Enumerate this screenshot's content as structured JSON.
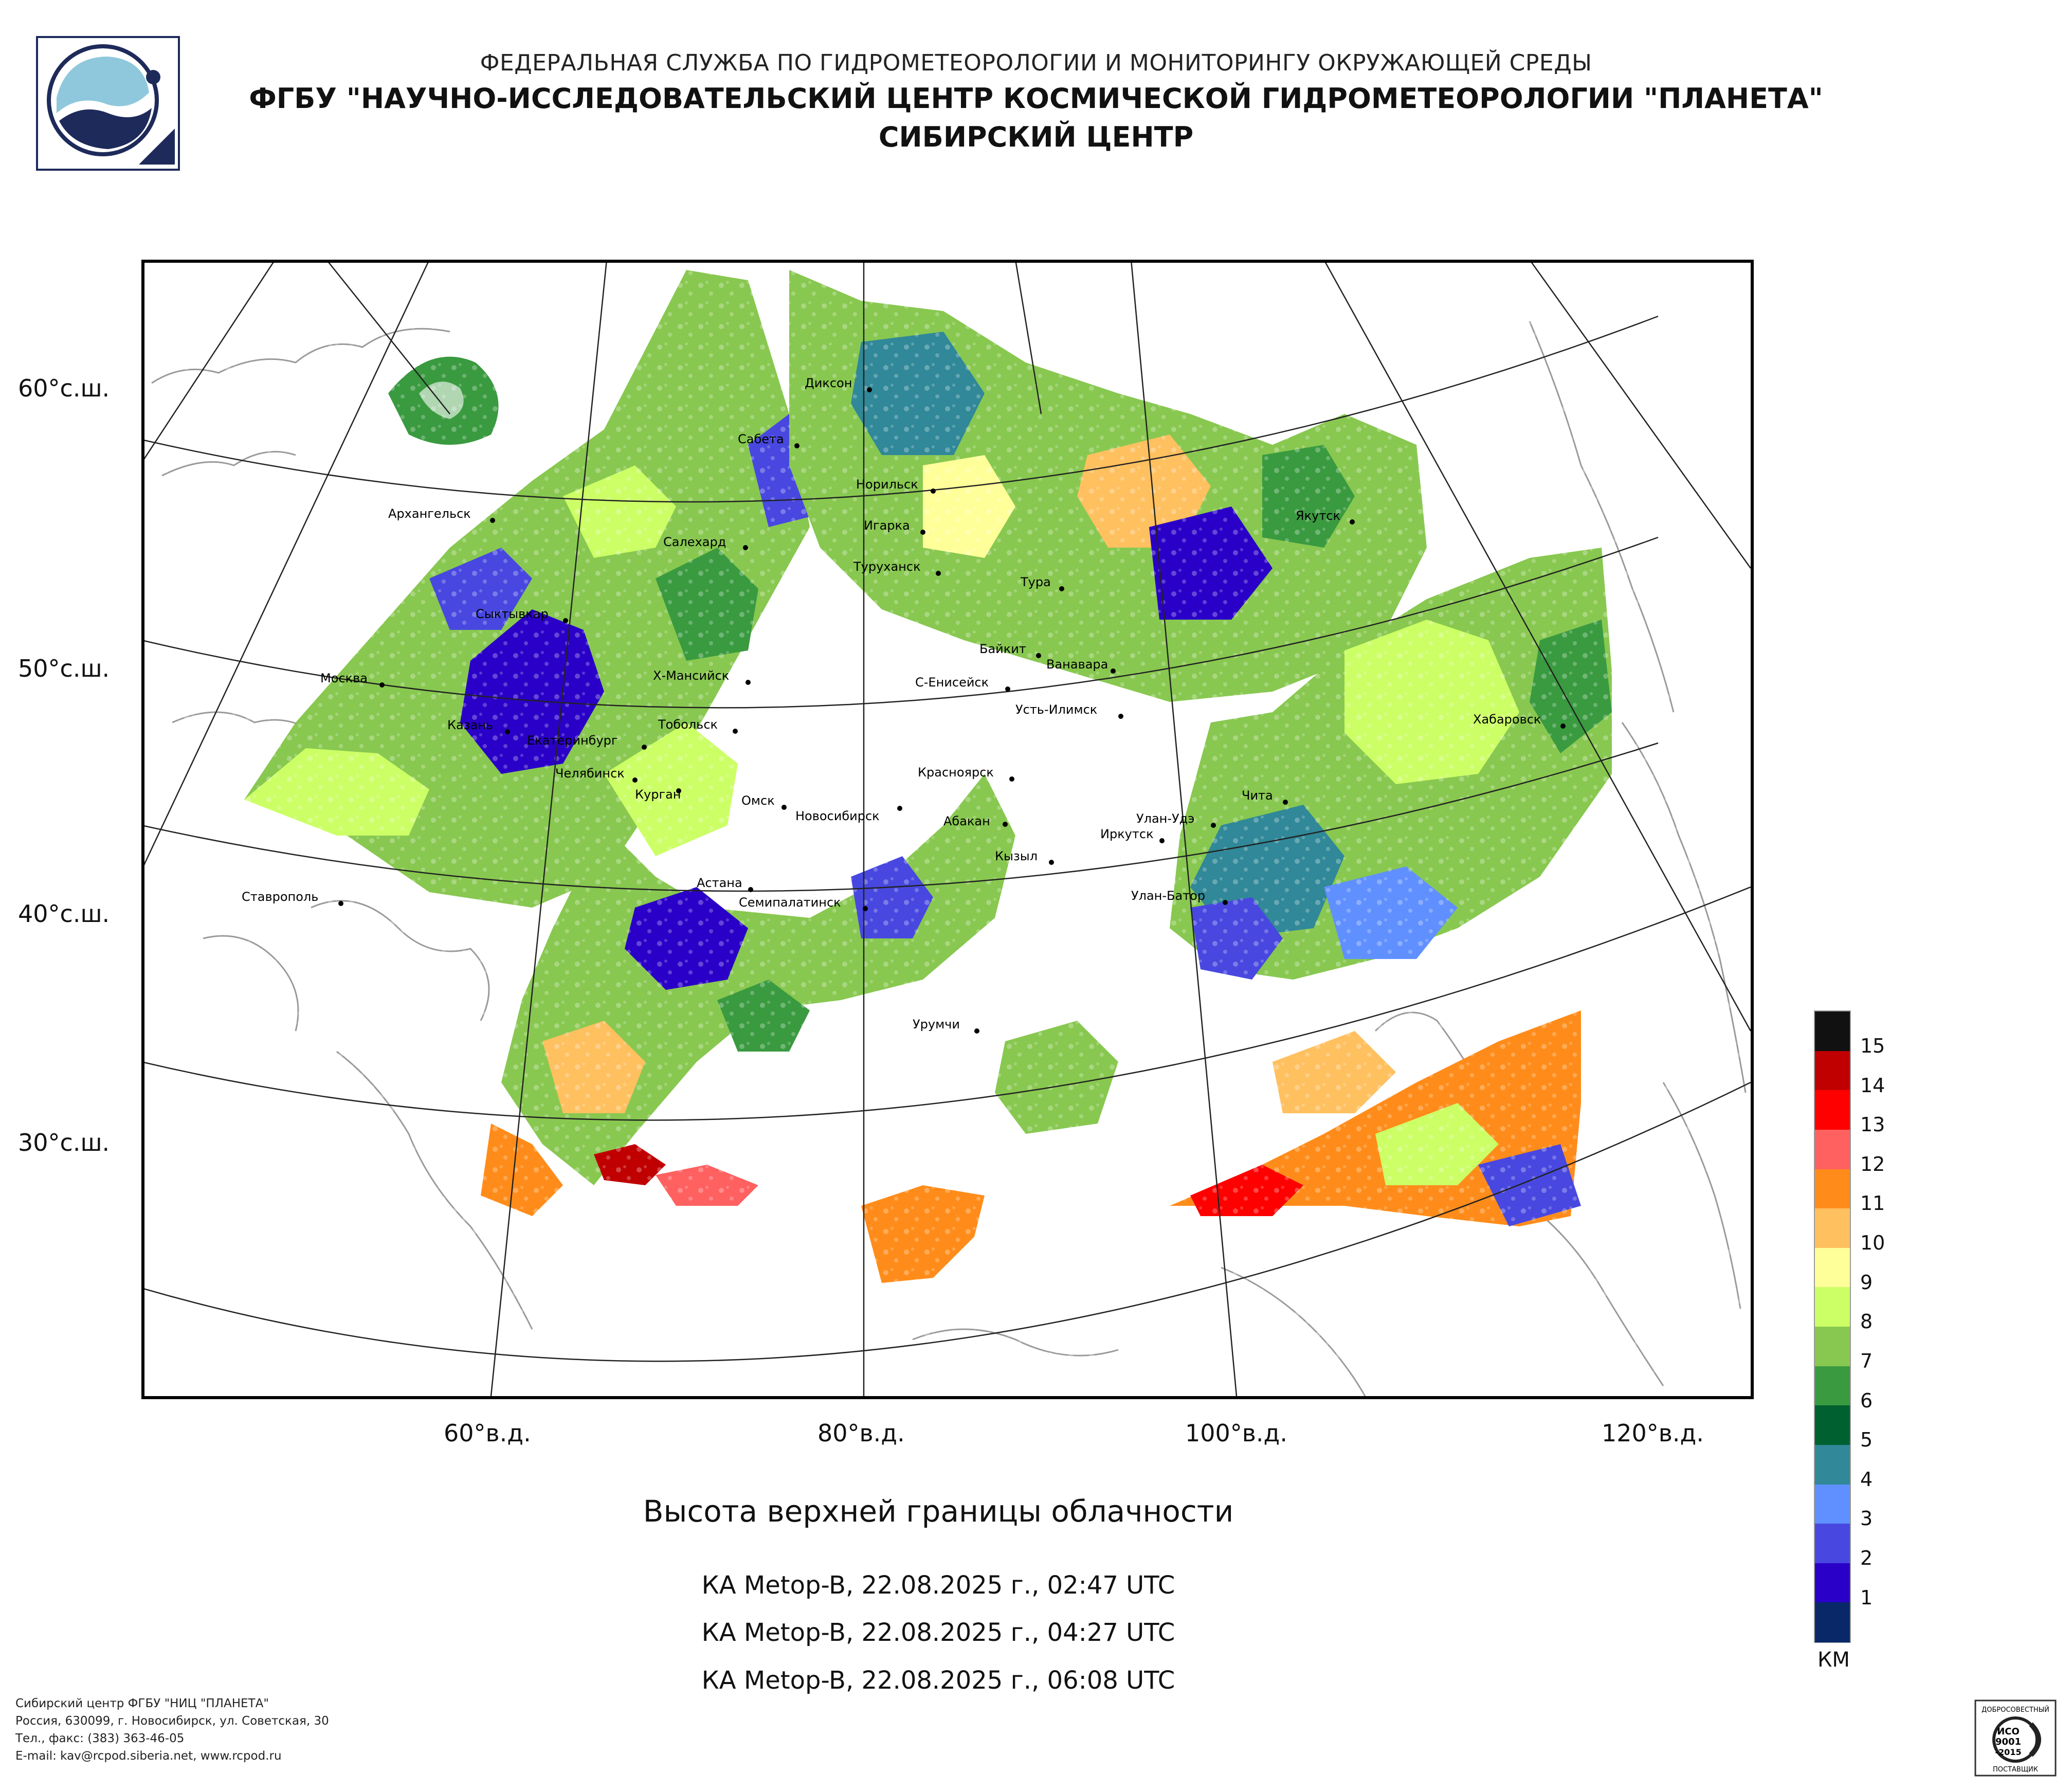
{
  "header": {
    "line1": "ФЕДЕРАЛЬНАЯ СЛУЖБА ПО ГИДРОМЕТЕОРОЛОГИИ И МОНИТОРИНГУ ОКРУЖАЮЩЕЙ СРЕДЫ",
    "line2": "ФГБУ \"НАУЧНО-ИССЛЕДОВАТЕЛЬСКИЙ ЦЕНТР КОСМИЧЕСКОЙ ГИДРОМЕТЕОРОЛОГИИ \"ПЛАНЕТА\"",
    "line3": "СИБИРСКИЙ ЦЕНТР"
  },
  "map": {
    "lat_labels": [
      "60°с.ш.",
      "50°с.ш.",
      "40°с.ш.",
      "30°с.ш."
    ],
    "lon_labels": [
      "60°в.д.",
      "80°в.д.",
      "100°в.д.",
      "120°в.д."
    ],
    "cities": [
      {
        "name": "Диксон"
      },
      {
        "name": "Сабета"
      },
      {
        "name": "Норильск"
      },
      {
        "name": "Игарка"
      },
      {
        "name": "Архангельск"
      },
      {
        "name": "Салехард"
      },
      {
        "name": "Туруханск"
      },
      {
        "name": "Якутск"
      },
      {
        "name": "Тура"
      },
      {
        "name": "Сыктывкар"
      },
      {
        "name": "Байкит"
      },
      {
        "name": "Ванавара"
      },
      {
        "name": "Москва"
      },
      {
        "name": "Х-Мансийск"
      },
      {
        "name": "С-Енисейск"
      },
      {
        "name": "Усть-Илимск"
      },
      {
        "name": "Хабаровск"
      },
      {
        "name": "Казань"
      },
      {
        "name": "Екатеринбург"
      },
      {
        "name": "Тобольск"
      },
      {
        "name": "Челябинск"
      },
      {
        "name": "Курган"
      },
      {
        "name": "Красноярск"
      },
      {
        "name": "Омск"
      },
      {
        "name": "Новосибирск"
      },
      {
        "name": "Абакан"
      },
      {
        "name": "Улан-Удэ"
      },
      {
        "name": "Чита"
      },
      {
        "name": "Иркутск"
      },
      {
        "name": "Кызыл"
      },
      {
        "name": "Астана"
      },
      {
        "name": "Улан-Батор"
      },
      {
        "name": "Ставрополь"
      },
      {
        "name": "Семипалатинск"
      },
      {
        "name": "Урумчи"
      }
    ]
  },
  "caption": "Высота верхней границы облачности",
  "passes": [
    "КА Metop-B, 22.08.2025 г., 02:47 UTC",
    "КА Metop-B, 22.08.2025 г., 04:27 UTC",
    "КА Metop-B, 22.08.2025 г., 06:08 UTC"
  ],
  "legend": {
    "unit": "КМ",
    "levels": [
      {
        "label": "15",
        "color": "#111111"
      },
      {
        "label": "14",
        "color": "#c00000"
      },
      {
        "label": "13",
        "color": "#ff0000"
      },
      {
        "label": "12",
        "color": "#ff6060"
      },
      {
        "label": "11",
        "color": "#ff8c1a"
      },
      {
        "label": "10",
        "color": "#ffc060"
      },
      {
        "label": "9",
        "color": "#ffff99"
      },
      {
        "label": "8",
        "color": "#ccff66"
      },
      {
        "label": "7",
        "color": "#88c850"
      },
      {
        "label": "6",
        "color": "#3a9a40"
      },
      {
        "label": "5",
        "color": "#006030"
      },
      {
        "label": "4",
        "color": "#308898"
      },
      {
        "label": "3",
        "color": "#6090ff"
      },
      {
        "label": "2",
        "color": "#4848e0"
      },
      {
        "label": "1",
        "color": "#2a00c8"
      },
      {
        "label": "",
        "color": "#082868"
      }
    ]
  },
  "footer": {
    "line1": "Сибирский центр ФГБУ \"НИЦ \"ПЛАНЕТА\"",
    "line2": "Россия, 630099, г. Новосибирск, ул. Советская, 30",
    "line3": "Тел., факс: (383) 363-46-05",
    "line4": "E-mail: kav@rcpod.siberia.net, www.rcpod.ru"
  },
  "certificate": {
    "top": "ДОБРОСОВЕСТНЫЙ",
    "mid1": "ИСО",
    "mid2": "9001",
    "mid3": "-2015",
    "bottom": "ПОСТАВЩИК"
  }
}
